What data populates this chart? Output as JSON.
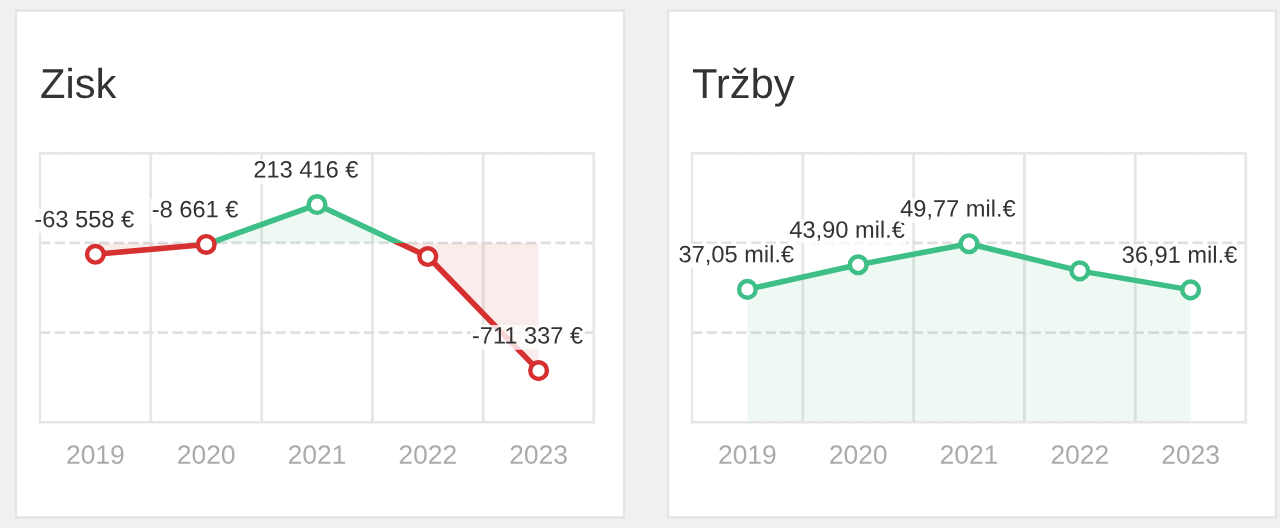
{
  "chart_data": [
    {
      "type": "area",
      "title": "Zisk",
      "categories": [
        "2019",
        "2020",
        "2021",
        "2022",
        "2023"
      ],
      "grid": true,
      "ylim": [
        -1000000,
        500000
      ],
      "yticks": [
        {
          "value": -500000,
          "label": null
        },
        {
          "value": 0,
          "label": null
        },
        {
          "value": 500000,
          "label": null
        }
      ],
      "tick_labels": "x",
      "marker": "circle",
      "legend": false,
      "series": [
        {
          "color": "#3dbf87",
          "colors": [
            "#d63031",
            "#d63031",
            "#3dbf87",
            "#d63031",
            "#d63031"
          ],
          "values": [
            -63558,
            -8661,
            213416,
            -76000,
            -711337
          ],
          "value_labels": [
            "-63 558 €",
            "-8 661 €",
            "213 416 €",
            null,
            "-711 337 €"
          ]
        }
      ]
    },
    {
      "type": "area",
      "title": "Tržby",
      "categories": [
        "2019",
        "2020",
        "2021",
        "2022",
        "2023"
      ],
      "grid": true,
      "ylim": [
        0,
        75
      ],
      "yticks": [
        {
          "value": 25,
          "label": null
        },
        {
          "value": 50,
          "label": null
        },
        {
          "value": 75,
          "label": null
        }
      ],
      "tick_labels": "x",
      "marker": "circle",
      "legend": false,
      "series": [
        {
          "color": "#3dbf87",
          "colors": [
            "#3dbf87",
            "#3dbf87",
            "#3dbf87",
            "#3dbf87",
            "#3dbf87"
          ],
          "values": [
            37.05,
            43.9,
            49.77,
            42.2,
            36.91
          ],
          "value_labels": [
            "37,05 mil.€",
            "43,90 mil.€",
            "49,77 mil.€",
            null,
            "36,91 mil.€"
          ]
        }
      ]
    }
  ]
}
